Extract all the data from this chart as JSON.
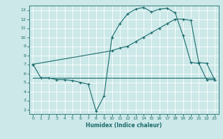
{
  "xlabel": "Humidex (Indice chaleur)",
  "bg_color": "#cce8e8",
  "grid_color": "#ffffff",
  "line_color": "#1a6b6b",
  "xlim": [
    -0.5,
    23.5
  ],
  "ylim": [
    1.5,
    13.5
  ],
  "yticks": [
    2,
    3,
    4,
    5,
    6,
    7,
    8,
    9,
    10,
    11,
    12,
    13
  ],
  "xticks": [
    0,
    1,
    2,
    3,
    4,
    5,
    6,
    7,
    8,
    9,
    10,
    11,
    12,
    13,
    14,
    15,
    16,
    17,
    18,
    19,
    20,
    21,
    22,
    23
  ],
  "line1_x": [
    0,
    1,
    2,
    3,
    4,
    5,
    6,
    7,
    8,
    9,
    10,
    11,
    12,
    13,
    14,
    15,
    16,
    17,
    18,
    19,
    20,
    21,
    22,
    23
  ],
  "line1_y": [
    7.0,
    5.5,
    5.5,
    5.3,
    5.3,
    5.2,
    5.0,
    4.8,
    1.8,
    3.5,
    10.0,
    11.5,
    12.6,
    13.1,
    13.3,
    12.8,
    13.1,
    13.2,
    12.7,
    10.2,
    7.2,
    7.1,
    5.3,
    5.3
  ],
  "line2_x": [
    0,
    10,
    11,
    12,
    13,
    14,
    15,
    16,
    17,
    18,
    19,
    20,
    21,
    22,
    23
  ],
  "line2_y": [
    7.0,
    8.5,
    8.8,
    9.0,
    9.5,
    10.0,
    10.5,
    11.0,
    11.5,
    12.0,
    12.0,
    11.85,
    7.2,
    7.1,
    5.3
  ],
  "line3_x": [
    0,
    1,
    2,
    3,
    4,
    5,
    6,
    7,
    8,
    9,
    10,
    11,
    12,
    13,
    14,
    15,
    16,
    17,
    18,
    19,
    20,
    21,
    22,
    23
  ],
  "line3_y": [
    5.5,
    5.5,
    5.5,
    5.5,
    5.5,
    5.5,
    5.5,
    5.5,
    5.5,
    5.5,
    5.5,
    5.5,
    5.5,
    5.5,
    5.5,
    5.5,
    5.5,
    5.5,
    5.5,
    5.5,
    5.5,
    5.5,
    5.5,
    5.5
  ]
}
